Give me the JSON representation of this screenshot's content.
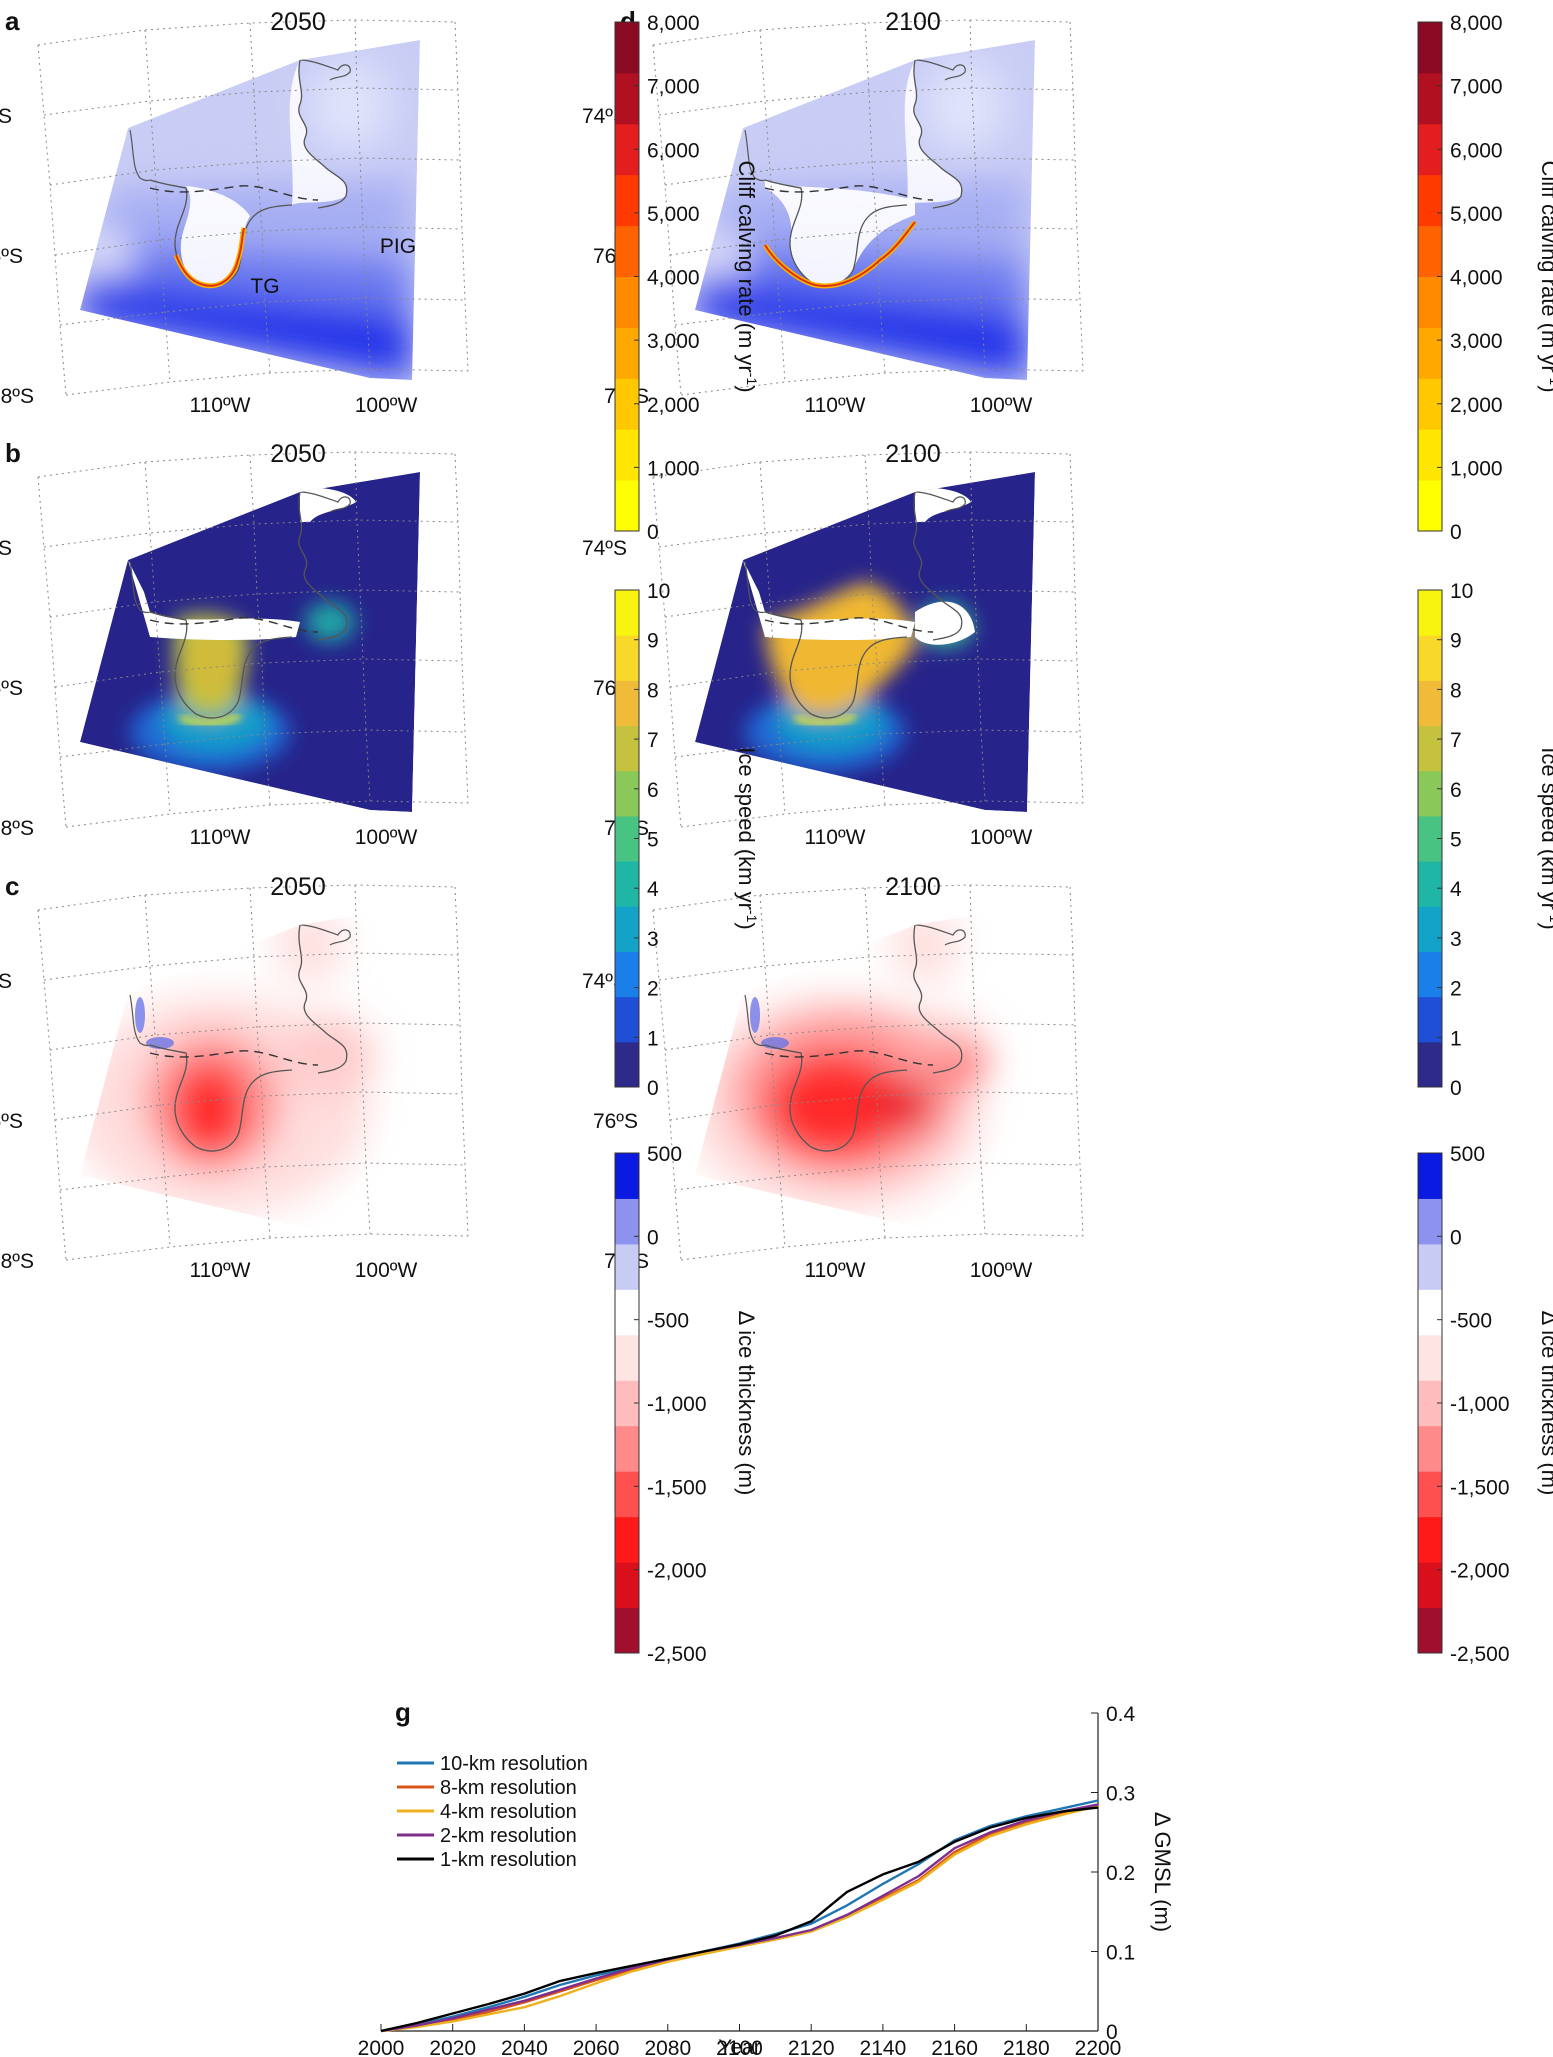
{
  "panels": [
    {
      "id": "a",
      "year": "2050",
      "kind": "calving",
      "labels": [
        {
          "text": "TG"
        },
        {
          "text": "PIG"
        }
      ]
    },
    {
      "id": "b",
      "year": "2050",
      "kind": "speed",
      "labels": []
    },
    {
      "id": "c",
      "year": "2050",
      "kind": "thickness",
      "labels": []
    },
    {
      "id": "d",
      "year": "2100",
      "kind": "calving",
      "labels": []
    },
    {
      "id": "e",
      "year": "2100",
      "kind": "speed",
      "labels": []
    },
    {
      "id": "f",
      "year": "2100",
      "kind": "thickness",
      "labels": []
    }
  ],
  "map_axes": {
    "lat_labels": [
      "74ºS",
      "76ºS",
      "78ºS"
    ],
    "lon_labels": [
      "110ºW",
      "100ºW"
    ]
  },
  "colorbars": {
    "calving": {
      "label_main": "Cliff calving rate (m yr",
      "label_sup": "-1",
      "label_close": ")",
      "ticks": [
        "0",
        "1,000",
        "2,000",
        "3,000",
        "4,000",
        "5,000",
        "6,000",
        "7,000",
        "8,000"
      ],
      "colors": [
        "#ffff00",
        "#ffe600",
        "#ffc800",
        "#ffa800",
        "#ff8a00",
        "#ff6200",
        "#ff3a00",
        "#e41e1e",
        "#b01020",
        "#8a0a24"
      ]
    },
    "speed": {
      "label_main": "Ice speed (km yr",
      "label_sup": "-1",
      "label_close": ")",
      "ticks": [
        "0",
        "1",
        "2",
        "3",
        "4",
        "5",
        "6",
        "7",
        "8",
        "9",
        "10"
      ],
      "colors": [
        "#2e2a8a",
        "#1f4fd6",
        "#1a7fe8",
        "#14a3c8",
        "#1fb6a6",
        "#48c382",
        "#8bc85a",
        "#c4c23e",
        "#f0bb38",
        "#f8d92a",
        "#f9f40f"
      ]
    },
    "thickness": {
      "label_main": "Δ ice thickness (m)",
      "label_sup": "",
      "label_close": "",
      "ticks": [
        "-2,500",
        "-2,000",
        "-1,500",
        "-1,000",
        "-500",
        "0",
        "500"
      ],
      "colors": [
        "#a0102e",
        "#d9101c",
        "#ff1a1a",
        "#ff5050",
        "#ff8a8a",
        "#ffbcbc",
        "#ffe4e4",
        "#ffffff",
        "#c8ccf4",
        "#8c92ee",
        "#0a1ae0"
      ]
    }
  },
  "chart_data": {
    "type": "line",
    "panel_letter": "g",
    "xlabel": "Year",
    "ylabel": "Δ GMSL (m)",
    "xlim": [
      2000,
      2200
    ],
    "ylim": [
      0,
      0.4
    ],
    "xticks": [
      "2000",
      "2020",
      "2040",
      "2060",
      "2080",
      "2100",
      "2120",
      "2140",
      "2160",
      "2180",
      "2200"
    ],
    "yticks": [
      "0",
      "0.1",
      "0.2",
      "0.3",
      "0.4"
    ],
    "legend_position": "top-left",
    "x": [
      2000,
      2010,
      2020,
      2030,
      2040,
      2050,
      2060,
      2070,
      2080,
      2090,
      2100,
      2110,
      2120,
      2130,
      2140,
      2150,
      2160,
      2170,
      2180,
      2190,
      2200
    ],
    "series": [
      {
        "name": "10-km resolution",
        "color": "#1f77b4",
        "values": [
          0,
          0.008,
          0.018,
          0.03,
          0.043,
          0.058,
          0.07,
          0.08,
          0.09,
          0.1,
          0.11,
          0.122,
          0.135,
          0.158,
          0.185,
          0.21,
          0.24,
          0.258,
          0.27,
          0.28,
          0.29
        ]
      },
      {
        "name": "8-km resolution",
        "color": "#d95319",
        "values": [
          0,
          0.006,
          0.014,
          0.024,
          0.036,
          0.05,
          0.064,
          0.077,
          0.088,
          0.098,
          0.107,
          0.116,
          0.126,
          0.145,
          0.167,
          0.19,
          0.225,
          0.248,
          0.263,
          0.274,
          0.284
        ]
      },
      {
        "name": "4-km resolution",
        "color": "#edb120",
        "values": [
          0,
          0.005,
          0.012,
          0.021,
          0.03,
          0.044,
          0.06,
          0.075,
          0.087,
          0.097,
          0.106,
          0.115,
          0.125,
          0.143,
          0.165,
          0.188,
          0.222,
          0.245,
          0.26,
          0.272,
          0.283
        ]
      },
      {
        "name": "2-km resolution",
        "color": "#7e2f8e",
        "values": [
          0,
          0.007,
          0.016,
          0.027,
          0.038,
          0.052,
          0.066,
          0.079,
          0.09,
          0.1,
          0.108,
          0.117,
          0.127,
          0.146,
          0.17,
          0.195,
          0.23,
          0.25,
          0.265,
          0.276,
          0.285
        ]
      },
      {
        "name": "1-km resolution",
        "color": "#000000",
        "values": [
          0,
          0.01,
          0.022,
          0.034,
          0.047,
          0.063,
          0.073,
          0.082,
          0.091,
          0.1,
          0.109,
          0.12,
          0.138,
          0.175,
          0.197,
          0.213,
          0.238,
          0.256,
          0.268,
          0.276,
          0.281
        ]
      }
    ]
  }
}
